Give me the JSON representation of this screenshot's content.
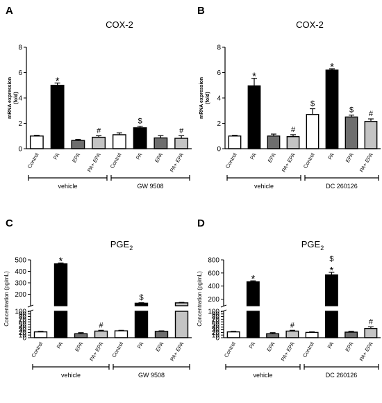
{
  "colors": {
    "white": "#ffffff",
    "black": "#000000",
    "dark_gray": "#6e6e6e",
    "light_gray": "#c4c4c4"
  },
  "chart_data": [
    {
      "type": "bar",
      "panel": "A",
      "title": "COX-2",
      "ylabel_lines": [
        "mRNA expression",
        "(fold)"
      ],
      "ylim": [
        0,
        8
      ],
      "yticks": [
        "0",
        "2",
        "4",
        "6",
        "8"
      ],
      "categories": [
        "Control",
        "PA",
        "EPA",
        "PA+ EPA",
        "Control",
        "PA",
        "EPA",
        "PA+ EPA"
      ],
      "values": [
        1.0,
        5.0,
        0.65,
        0.9,
        1.1,
        1.65,
        0.85,
        0.82
      ],
      "errors": [
        0.06,
        0.18,
        0.08,
        0.12,
        0.15,
        0.12,
        0.18,
        0.2
      ],
      "fills": [
        "white",
        "black",
        "dark_gray",
        "light_gray",
        "white",
        "black",
        "dark_gray",
        "light_gray"
      ],
      "marks": [
        "",
        "*",
        "",
        "#",
        "",
        "$",
        "",
        "#"
      ],
      "groups": [
        {
          "label": "vehicle"
        },
        {
          "label": "GW 9508"
        }
      ]
    },
    {
      "type": "bar",
      "panel": "B",
      "title": "COX-2",
      "ylabel_lines": [
        "mRNA expression",
        "(fold)"
      ],
      "ylim": [
        0,
        8
      ],
      "yticks": [
        "0",
        "2",
        "4",
        "6",
        "8"
      ],
      "categories": [
        "Control",
        "PA",
        "EPA",
        "PA+ EPA",
        "Control",
        "PA",
        "EPA",
        "PA+ EPA"
      ],
      "values": [
        1.0,
        4.95,
        1.0,
        0.95,
        2.7,
        6.2,
        2.5,
        2.15
      ],
      "errors": [
        0.06,
        0.6,
        0.15,
        0.15,
        0.45,
        0.1,
        0.15,
        0.2
      ],
      "fills": [
        "white",
        "black",
        "dark_gray",
        "light_gray",
        "white",
        "black",
        "dark_gray",
        "light_gray"
      ],
      "marks": [
        "",
        "*",
        "",
        "#",
        "$",
        "*",
        "$",
        "#"
      ],
      "groups": [
        {
          "label": "vehicle"
        },
        {
          "label": "DC 260126"
        }
      ]
    },
    {
      "type": "bar",
      "panel": "C",
      "title": "PGE",
      "title_sub": "2",
      "ylabel": "Concentration (pg/mL)",
      "axis_break": true,
      "lower_ylim": [
        0,
        100
      ],
      "lower_yticks": [
        "0",
        "10",
        "20",
        "30",
        "40",
        "50",
        "60",
        "70",
        "80",
        "90",
        "100"
      ],
      "upper_ylim": [
        100,
        500
      ],
      "upper_yticks": [
        "100",
        "200",
        "300",
        "400",
        "500"
      ],
      "categories": [
        "Control",
        "PA",
        "EPA",
        "PA+ EPA",
        "Control",
        "PA",
        "EPA",
        "PA+ EPA"
      ],
      "values": [
        22,
        465,
        15,
        25,
        26,
        122,
        24,
        125
      ],
      "errors": [
        2,
        8,
        4,
        3,
        2,
        4,
        2,
        4
      ],
      "fills": [
        "white",
        "black",
        "dark_gray",
        "light_gray",
        "white",
        "black",
        "dark_gray",
        "light_gray"
      ],
      "marks": [
        "",
        "*",
        "",
        "#",
        "",
        "$",
        "",
        ""
      ],
      "groups": [
        {
          "label": "vehicle"
        },
        {
          "label": "GW 9508"
        }
      ]
    },
    {
      "type": "bar",
      "panel": "D",
      "title": "PGE",
      "title_sub": "2",
      "ylabel": "Concentration (pg/mL)",
      "axis_break": true,
      "lower_ylim": [
        0,
        100
      ],
      "lower_yticks": [
        "0",
        "10",
        "20",
        "30",
        "40",
        "50",
        "60",
        "70",
        "80",
        "90",
        "100"
      ],
      "upper_ylim": [
        100,
        800
      ],
      "upper_yticks": [
        "100",
        "200",
        "400",
        "600",
        "800"
      ],
      "categories": [
        "Control",
        "PA",
        "EPA",
        "PA+ EPA",
        "Control",
        "PA",
        "EPA",
        "PA+ EPA"
      ],
      "values": [
        22,
        465,
        15,
        25,
        20,
        570,
        21,
        35
      ],
      "errors": [
        2,
        15,
        4,
        3,
        2,
        40,
        3,
        6
      ],
      "fills": [
        "white",
        "black",
        "dark_gray",
        "light_gray",
        "white",
        "black",
        "dark_gray",
        "light_gray"
      ],
      "marks": [
        "",
        "*",
        "",
        "#",
        "",
        "$*",
        "",
        "#"
      ],
      "groups": [
        {
          "label": "vehicle"
        },
        {
          "label": "DC 260126"
        }
      ]
    }
  ]
}
